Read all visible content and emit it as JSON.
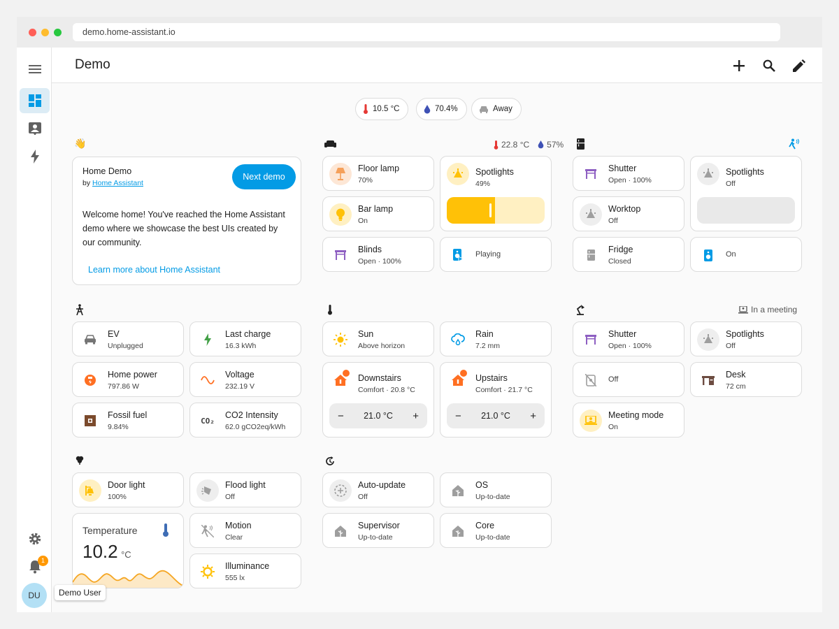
{
  "browser": {
    "url": "demo.home-assistant.io"
  },
  "header": {
    "title": "Demo"
  },
  "badges": {
    "temperature": "10.5 °C",
    "humidity": "70.4%",
    "presence": "Away"
  },
  "welcome": {
    "title": "Home Demo",
    "by_prefix": "by",
    "by_link": "Home Assistant",
    "next_button": "Next demo",
    "text": "Welcome home! You've reached the Home Assistant demo where we showcase the best UIs created by our community.",
    "learn_more": "Learn more about Home Assistant"
  },
  "living_room": {
    "temperature": "22.8 °C",
    "humidity": "57%",
    "floor_lamp": {
      "name": "Floor lamp",
      "state": "70%"
    },
    "spotlights": {
      "name": "Spotlights",
      "state": "49%",
      "level": 0.49
    },
    "bar_lamp": {
      "name": "Bar lamp",
      "state": "On"
    },
    "blinds": {
      "name": "Blinds",
      "state": "Open · 100%"
    },
    "speaker": {
      "state": "Playing"
    }
  },
  "kitchen": {
    "shutter": {
      "name": "Shutter",
      "state": "Open · 100%"
    },
    "spotlights": {
      "name": "Spotlights",
      "state": "Off"
    },
    "worktop": {
      "name": "Worktop",
      "state": "Off"
    },
    "fridge": {
      "name": "Fridge",
      "state": "Closed"
    },
    "speaker": {
      "state": "On"
    }
  },
  "energy": {
    "ev": {
      "name": "EV",
      "state": "Unplugged"
    },
    "last_charge": {
      "name": "Last charge",
      "state": "16.3 kWh"
    },
    "home_power": {
      "name": "Home power",
      "state": "797.86 W"
    },
    "voltage": {
      "name": "Voltage",
      "state": "232.19 V"
    },
    "fossil_fuel": {
      "name": "Fossil fuel",
      "state": "9.84%"
    },
    "co2": {
      "name": "CO2 Intensity",
      "state": "62.0 gCO2eq/kWh",
      "icon_text": "CO₂"
    }
  },
  "climate": {
    "sun": {
      "name": "Sun",
      "state": "Above horizon"
    },
    "rain": {
      "name": "Rain",
      "state": "7.2 mm"
    },
    "downstairs": {
      "name": "Downstairs",
      "state": "Comfort · 20.8 °C",
      "target": "21.0 °C"
    },
    "upstairs": {
      "name": "Upstairs",
      "state": "Comfort · 21.7 °C",
      "target": "21.0 °C"
    },
    "minus": "−",
    "plus": "+"
  },
  "office": {
    "status": "In a meeting",
    "shutter": {
      "name": "Shutter",
      "state": "Open · 100%"
    },
    "spotlights": {
      "name": "Spotlights",
      "state": "Off"
    },
    "plug": {
      "state": "Off"
    },
    "desk": {
      "name": "Desk",
      "state": "72 cm"
    },
    "meeting": {
      "name": "Meeting mode",
      "state": "On"
    }
  },
  "garden": {
    "door_light": {
      "name": "Door light",
      "state": "100%"
    },
    "flood_light": {
      "name": "Flood light",
      "state": "Off"
    },
    "motion": {
      "name": "Motion",
      "state": "Clear"
    },
    "illuminance": {
      "name": "Illuminance",
      "state": "555 lx"
    },
    "temperature": {
      "title": "Temperature",
      "value": "10.2",
      "unit": "°C"
    }
  },
  "updates": {
    "auto_update": {
      "name": "Auto-update",
      "state": "Off"
    },
    "os": {
      "name": "OS",
      "state": "Up-to-date"
    },
    "supervisor": {
      "name": "Supervisor",
      "state": "Up-to-date"
    },
    "core": {
      "name": "Core",
      "state": "Up-to-date"
    }
  },
  "sidebar": {
    "notifications_count": "1",
    "user_initials": "DU",
    "user_name": "Demo User"
  },
  "colors": {
    "accent": "#039be5",
    "amber": "#ffc107",
    "orange": "#ff6f22",
    "purple": "#8e5fc2"
  }
}
